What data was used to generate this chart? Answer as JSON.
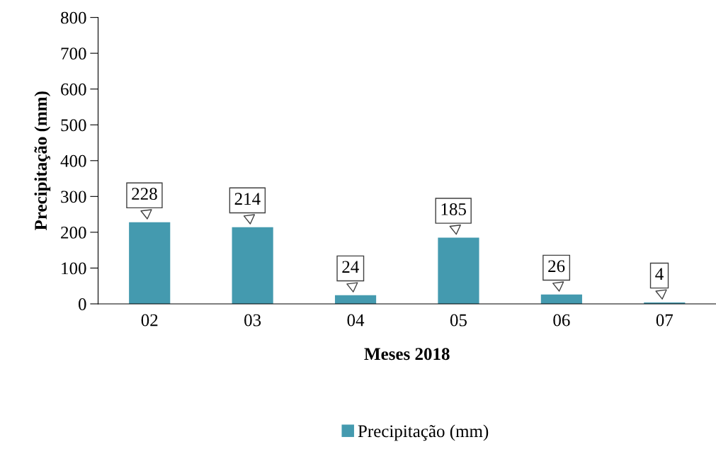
{
  "chart_data": {
    "type": "bar",
    "xlabel": "Meses 2018",
    "ylabel": "Precipitação (mm)",
    "categories": [
      "02",
      "03",
      "04",
      "05",
      "06",
      "07"
    ],
    "series": [
      {
        "name": "Precipitação (mm)",
        "color": "#449aaf",
        "values": [
          228,
          214,
          24,
          185,
          26,
          4
        ]
      }
    ],
    "ylim": [
      0,
      800
    ],
    "yticks": [
      0,
      100,
      200,
      300,
      400,
      500,
      600,
      700,
      800
    ],
    "data_labels": true,
    "grid": false,
    "legend": "bottom"
  }
}
